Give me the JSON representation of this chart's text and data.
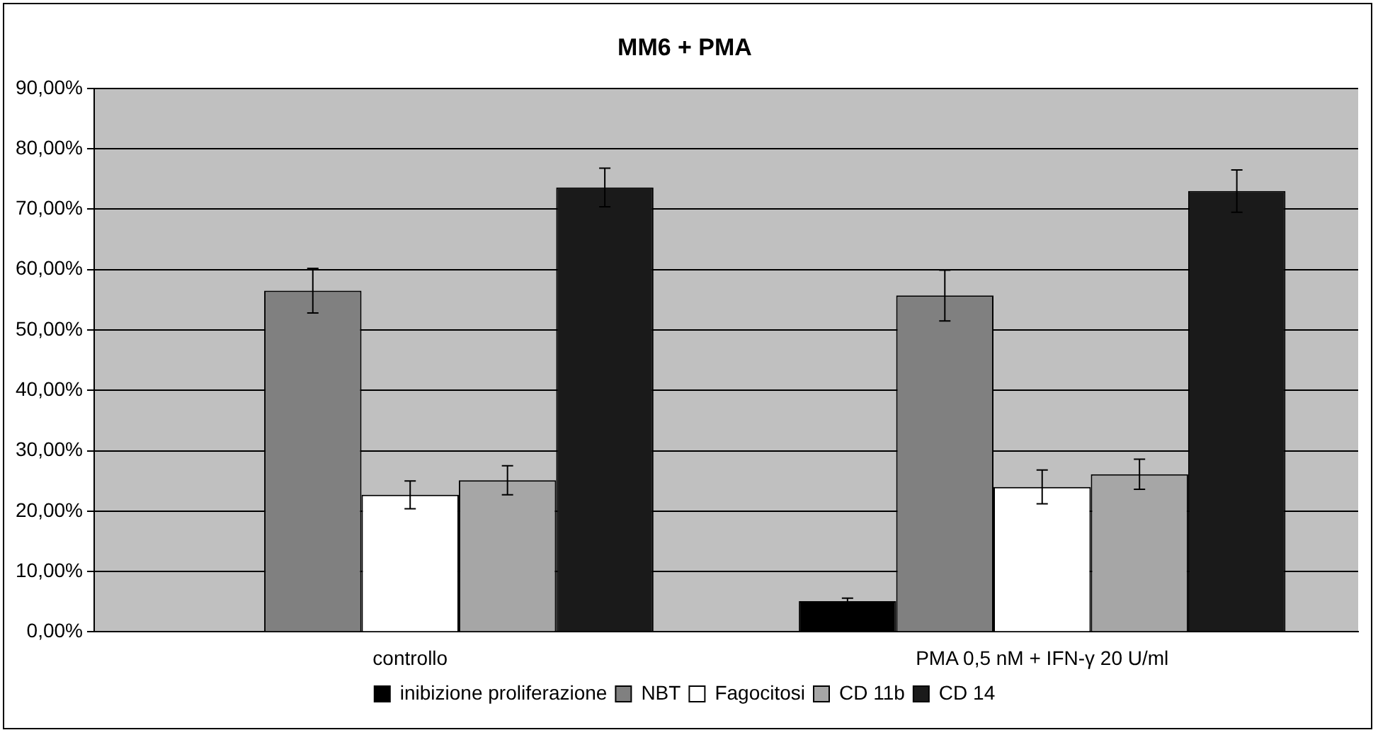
{
  "chart_data": {
    "type": "bar",
    "title": "MM6 + PMA",
    "categories": [
      "controllo",
      "PMA 0,5 nM + IFN-γ 20 U/ml"
    ],
    "series": [
      {
        "name": "inibizione proliferazione",
        "color": "#000000",
        "values": [
          0,
          5.1
        ],
        "errors": [
          null,
          0.5
        ]
      },
      {
        "name": "NBT",
        "color": "#808080",
        "values": [
          56.5,
          55.7
        ],
        "errors": [
          3.7,
          4.2
        ]
      },
      {
        "name": "Fagocitosi",
        "color": "#ffffff",
        "values": [
          22.7,
          24.0
        ],
        "errors": [
          2.3,
          2.8
        ]
      },
      {
        "name": "CD 11b",
        "color": "#a6a6a6",
        "values": [
          25.1,
          26.1
        ],
        "errors": [
          2.4,
          2.5
        ]
      },
      {
        "name": "CD 14",
        "color": "#1a1a1a",
        "values": [
          73.6,
          73.0
        ],
        "errors": [
          3.2,
          3.5
        ]
      }
    ],
    "ylim": [
      0,
      90
    ],
    "yticks": [
      {
        "value": 0,
        "label": "0,00%"
      },
      {
        "value": 10,
        "label": "10,00%"
      },
      {
        "value": 20,
        "label": "20,00%"
      },
      {
        "value": 30,
        "label": "30,00%"
      },
      {
        "value": 40,
        "label": "40,00%"
      },
      {
        "value": 50,
        "label": "50,00%"
      },
      {
        "value": 60,
        "label": "60,00%"
      },
      {
        "value": 70,
        "label": "70,00%"
      },
      {
        "value": 80,
        "label": "80,00%"
      },
      {
        "value": 90,
        "label": "90,00%"
      }
    ],
    "grid": "y",
    "legend": "bottom"
  }
}
